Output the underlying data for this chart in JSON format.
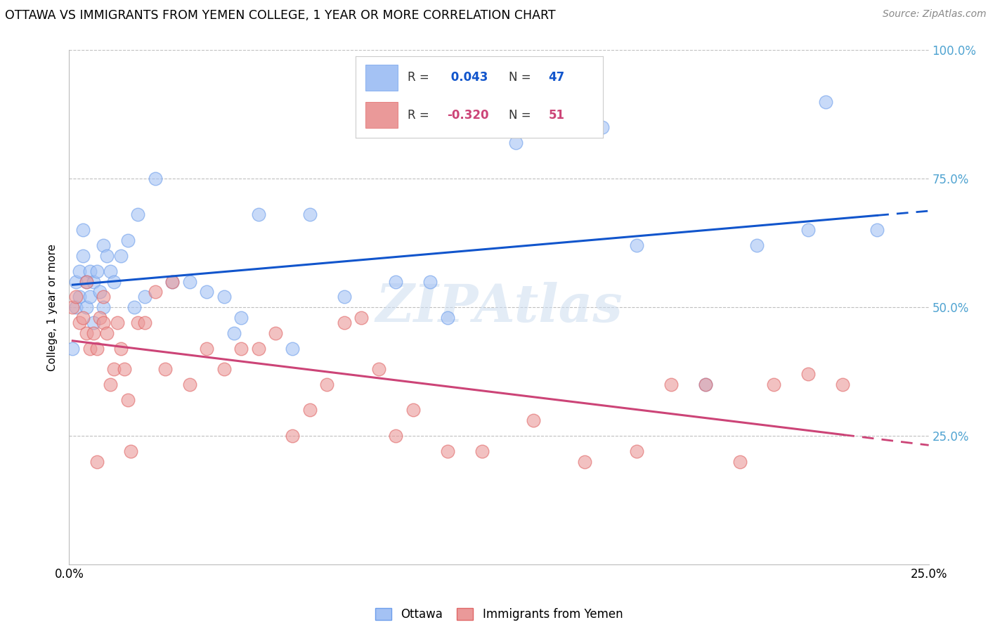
{
  "title": "OTTAWA VS IMMIGRANTS FROM YEMEN COLLEGE, 1 YEAR OR MORE CORRELATION CHART",
  "source": "Source: ZipAtlas.com",
  "ylabel": "College, 1 year or more",
  "xlim": [
    0.0,
    25.0
  ],
  "ylim": [
    0.0,
    100.0
  ],
  "blue_color": "#a4c2f4",
  "blue_edge_color": "#6d9eeb",
  "pink_color": "#ea9999",
  "pink_edge_color": "#e06666",
  "blue_line_color": "#1155cc",
  "pink_line_color": "#cc4477",
  "watermark": "ZIPAtlas",
  "legend_r1": " 0.043",
  "legend_n1": "47",
  "legend_r2": "-0.320",
  "legend_n2": "51",
  "ottawa_x": [
    0.1,
    0.2,
    0.2,
    0.3,
    0.3,
    0.4,
    0.4,
    0.5,
    0.5,
    0.6,
    0.6,
    0.7,
    0.7,
    0.8,
    0.9,
    1.0,
    1.0,
    1.1,
    1.2,
    1.3,
    1.5,
    1.7,
    1.9,
    2.0,
    2.2,
    2.5,
    3.0,
    3.5,
    4.0,
    4.5,
    4.8,
    5.0,
    5.5,
    6.5,
    7.0,
    8.0,
    9.5,
    10.5,
    11.0,
    13.0,
    15.5,
    16.5,
    18.5,
    20.0,
    21.5,
    22.0,
    23.5
  ],
  "ottawa_y": [
    42,
    50,
    55,
    52,
    57,
    60,
    65,
    55,
    50,
    57,
    52,
    55,
    47,
    57,
    53,
    50,
    62,
    60,
    57,
    55,
    60,
    63,
    50,
    68,
    52,
    75,
    55,
    55,
    53,
    52,
    45,
    48,
    68,
    42,
    68,
    52,
    55,
    55,
    48,
    82,
    85,
    62,
    35,
    62,
    65,
    90,
    65
  ],
  "yemen_x": [
    0.1,
    0.2,
    0.3,
    0.4,
    0.5,
    0.5,
    0.6,
    0.7,
    0.8,
    0.8,
    0.9,
    1.0,
    1.0,
    1.1,
    1.2,
    1.3,
    1.4,
    1.5,
    1.6,
    1.7,
    1.8,
    2.0,
    2.2,
    2.5,
    2.8,
    3.0,
    3.5,
    4.0,
    4.5,
    5.0,
    5.5,
    6.0,
    6.5,
    7.0,
    7.5,
    8.0,
    8.5,
    9.0,
    9.5,
    10.0,
    11.0,
    12.0,
    13.5,
    15.0,
    16.5,
    17.5,
    18.5,
    19.5,
    20.5,
    21.5,
    22.5
  ],
  "yemen_y": [
    50,
    52,
    47,
    48,
    45,
    55,
    42,
    45,
    42,
    20,
    48,
    47,
    52,
    45,
    35,
    38,
    47,
    42,
    38,
    32,
    22,
    47,
    47,
    53,
    38,
    55,
    35,
    42,
    38,
    42,
    42,
    45,
    25,
    30,
    35,
    47,
    48,
    38,
    25,
    30,
    22,
    22,
    28,
    20,
    22,
    35,
    35,
    20,
    35,
    37,
    35
  ]
}
